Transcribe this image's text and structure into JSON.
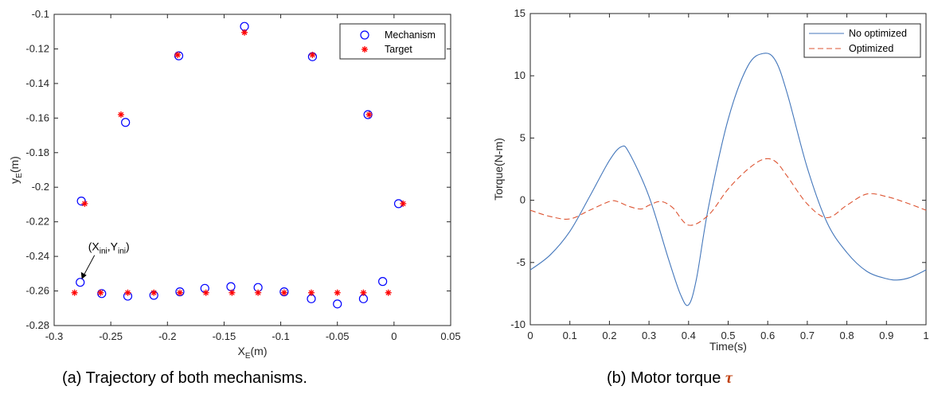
{
  "chart_data": [
    {
      "type": "scatter",
      "caption": "(a) Trajectory of both mechanisms.",
      "xlabel": "X",
      "xlabel_sub": "E",
      "xlabel_unit": "(m)",
      "ylabel": "y",
      "ylabel_sub": "E",
      "ylabel_unit": "(m)",
      "xlim": [
        -0.3,
        0.05
      ],
      "ylim": [
        -0.28,
        -0.1
      ],
      "xticks": [
        "-0.3",
        "-0.25",
        "-0.2",
        "-0.15",
        "-0.1",
        "-0.05",
        "0",
        "0.05"
      ],
      "yticks": [
        "-0.1",
        "-0.12",
        "-0.14",
        "-0.16",
        "-0.18",
        "-0.2",
        "-0.22",
        "-0.24",
        "-0.26",
        "-0.28"
      ],
      "legend_position": "top-right",
      "annotation": {
        "parts": [
          "(X",
          "ini",
          ",Y",
          "ini",
          ")"
        ],
        "point": [
          -0.277,
          -0.255
        ]
      },
      "series": [
        {
          "name": "Mechanism",
          "marker": "circle",
          "color": "#0000ff",
          "points": [
            [
              -0.277,
              -0.255
            ],
            [
              -0.258,
              -0.2615
            ],
            [
              -0.235,
              -0.263
            ],
            [
              -0.212,
              -0.2625
            ],
            [
              -0.189,
              -0.2605
            ],
            [
              -0.167,
              -0.2585
            ],
            [
              -0.144,
              -0.2575
            ],
            [
              -0.12,
              -0.258
            ],
            [
              -0.097,
              -0.2605
            ],
            [
              -0.073,
              -0.2645
            ],
            [
              -0.05,
              -0.2675
            ],
            [
              -0.027,
              -0.2645
            ],
            [
              -0.01,
              -0.2545
            ],
            [
              0.004,
              -0.2095
            ],
            [
              -0.023,
              -0.158
            ],
            [
              -0.072,
              -0.1245
            ],
            [
              -0.132,
              -0.107
            ],
            [
              -0.19,
              -0.124
            ],
            [
              -0.237,
              -0.1625
            ],
            [
              -0.276,
              -0.208
            ]
          ]
        },
        {
          "name": "Target",
          "marker": "asterisk",
          "color": "#ff0000",
          "points": [
            [
              -0.282,
              -0.261
            ],
            [
              -0.259,
              -0.261
            ],
            [
              -0.235,
              -0.261
            ],
            [
              -0.212,
              -0.261
            ],
            [
              -0.189,
              -0.261
            ],
            [
              -0.166,
              -0.261
            ],
            [
              -0.143,
              -0.261
            ],
            [
              -0.12,
              -0.261
            ],
            [
              -0.097,
              -0.261
            ],
            [
              -0.073,
              -0.261
            ],
            [
              -0.05,
              -0.261
            ],
            [
              -0.027,
              -0.261
            ],
            [
              -0.005,
              -0.261
            ],
            [
              0.008,
              -0.2095
            ],
            [
              -0.022,
              -0.158
            ],
            [
              -0.072,
              -0.1235
            ],
            [
              -0.132,
              -0.1105
            ],
            [
              -0.191,
              -0.1235
            ],
            [
              -0.241,
              -0.158
            ],
            [
              -0.273,
              -0.2095
            ]
          ]
        }
      ]
    },
    {
      "type": "line",
      "caption_text": "(b) Motor torque ",
      "caption_symbol": "τ",
      "xlabel": "Time(s)",
      "ylabel": "Torque(N-m)",
      "xlim": [
        0,
        1
      ],
      "ylim": [
        -10,
        15
      ],
      "xticks": [
        "0",
        "0.1",
        "0.2",
        "0.3",
        "0.4",
        "0.5",
        "0.6",
        "0.7",
        "0.8",
        "0.9",
        "1"
      ],
      "yticks": [
        "15",
        "10",
        "5",
        "0",
        "-5",
        "-10"
      ],
      "legend_position": "top-right",
      "series": [
        {
          "name": "No optimized",
          "style": "solid",
          "color": "#4477bb",
          "x": [
            0,
            0.05,
            0.1,
            0.15,
            0.2,
            0.23,
            0.25,
            0.3,
            0.35,
            0.38,
            0.4,
            0.42,
            0.45,
            0.5,
            0.55,
            0.59,
            0.62,
            0.65,
            0.7,
            0.75,
            0.8,
            0.85,
            0.9,
            0.93,
            0.96,
            1.0
          ],
          "y": [
            -5.6,
            -4.4,
            -2.5,
            0.3,
            3.2,
            4.3,
            3.8,
            0.3,
            -4.8,
            -7.6,
            -8.4,
            -6.3,
            -0.6,
            6.5,
            10.8,
            11.8,
            11.2,
            8.5,
            2.6,
            -1.8,
            -4.2,
            -5.7,
            -6.3,
            -6.4,
            -6.2,
            -5.6
          ]
        },
        {
          "name": "Optimized",
          "style": "dashed",
          "color": "#dd5533",
          "x": [
            0,
            0.05,
            0.1,
            0.15,
            0.2,
            0.22,
            0.25,
            0.28,
            0.3,
            0.33,
            0.36,
            0.4,
            0.45,
            0.5,
            0.55,
            0.59,
            0.62,
            0.65,
            0.7,
            0.75,
            0.8,
            0.85,
            0.9,
            0.95,
            1.0
          ],
          "y": [
            -0.8,
            -1.3,
            -1.5,
            -0.8,
            -0.1,
            -0.1,
            -0.5,
            -0.7,
            -0.4,
            -0.1,
            -0.6,
            -2.0,
            -1.2,
            0.9,
            2.5,
            3.3,
            3.1,
            1.9,
            -0.3,
            -1.4,
            -0.4,
            0.5,
            0.3,
            -0.2,
            -0.8
          ]
        }
      ]
    }
  ]
}
